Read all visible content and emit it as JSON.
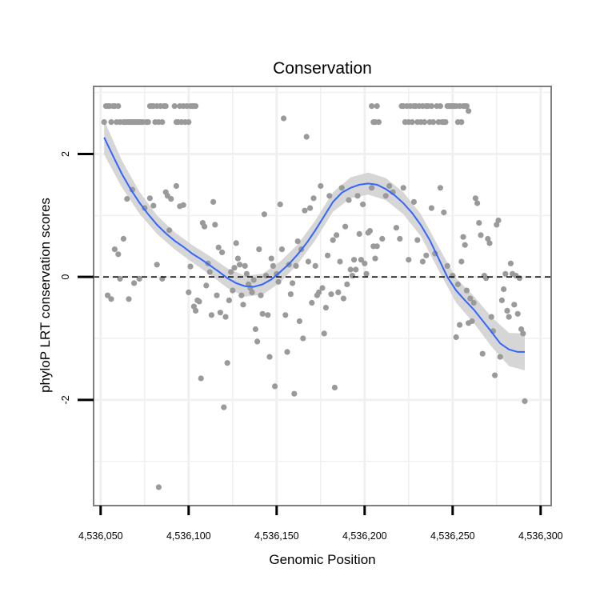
{
  "chart_data": {
    "type": "scatter",
    "title": "Conservation",
    "xlabel": "Genomic Position",
    "ylabel": "phyloP LRT conservation scores",
    "xlim": [
      4536046,
      4536306
    ],
    "ylim": [
      -3.72,
      3.1
    ],
    "x_ticks": [
      {
        "value": 4536050,
        "label": "4,536,050"
      },
      {
        "value": 4536100,
        "label": "4,536,100"
      },
      {
        "value": 4536150,
        "label": "4,536,150"
      },
      {
        "value": 4536200,
        "label": "4,536,200"
      },
      {
        "value": 4536250,
        "label": "4,536,250"
      },
      {
        "value": 4536300,
        "label": "4,536,300"
      }
    ],
    "y_ticks": [
      {
        "value": -2,
        "label": "-2"
      },
      {
        "value": 0,
        "label": "0"
      },
      {
        "value": 2,
        "label": "2"
      }
    ],
    "reference_line": {
      "y": 0,
      "style": "dashed",
      "color": "#000000"
    },
    "points_color": "#9a9a9a",
    "smooth_color": "#3366ff",
    "ribbon_color": "#d4d4d4",
    "panel_border_color": "#7f7f7f",
    "grid_color": "#f0f0f0",
    "points": [
      [
        4536052,
        2.52
      ],
      [
        4536053,
        2.78
      ],
      [
        4536054,
        2.78
      ],
      [
        4536055,
        2.78
      ],
      [
        4536056,
        2.52
      ],
      [
        4536057,
        2.78
      ],
      [
        4536058,
        2.78
      ],
      [
        4536059,
        2.52
      ],
      [
        4536060,
        2.78
      ],
      [
        4536061,
        2.52
      ],
      [
        4536063,
        2.52
      ],
      [
        4536064,
        2.52
      ],
      [
        4536065,
        2.52
      ],
      [
        4536066,
        2.52
      ],
      [
        4536067,
        2.52
      ],
      [
        4536068,
        2.52
      ],
      [
        4536069,
        2.52
      ],
      [
        4536070,
        2.52
      ],
      [
        4536071,
        2.52
      ],
      [
        4536072,
        2.52
      ],
      [
        4536073,
        2.52
      ],
      [
        4536074,
        2.52
      ],
      [
        4536076,
        2.52
      ],
      [
        4536077,
        2.52
      ],
      [
        4536078,
        2.78
      ],
      [
        4536079,
        2.78
      ],
      [
        4536080,
        2.78
      ],
      [
        4536081,
        2.52
      ],
      [
        4536082,
        2.78
      ],
      [
        4536083,
        2.52
      ],
      [
        4536084,
        2.78
      ],
      [
        4536085,
        2.52
      ],
      [
        4536086,
        2.78
      ],
      [
        4536087,
        2.78
      ],
      [
        4536092,
        2.78
      ],
      [
        4536093,
        2.52
      ],
      [
        4536094,
        2.52
      ],
      [
        4536095,
        2.78
      ],
      [
        4536096,
        2.52
      ],
      [
        4536097,
        2.78
      ],
      [
        4536098,
        2.52
      ],
      [
        4536099,
        2.78
      ],
      [
        4536100,
        2.52
      ],
      [
        4536101,
        2.78
      ],
      [
        4536102,
        2.78
      ],
      [
        4536103,
        2.78
      ],
      [
        4536104,
        2.78
      ],
      [
        4536204,
        2.78
      ],
      [
        4536205,
        2.52
      ],
      [
        4536206,
        2.52
      ],
      [
        4536207,
        2.78
      ],
      [
        4536208,
        2.52
      ],
      [
        4536221,
        2.78
      ],
      [
        4536222,
        2.78
      ],
      [
        4536223,
        2.52
      ],
      [
        4536224,
        2.78
      ],
      [
        4536225,
        2.52
      ],
      [
        4536226,
        2.78
      ],
      [
        4536227,
        2.52
      ],
      [
        4536228,
        2.78
      ],
      [
        4536229,
        2.78
      ],
      [
        4536230,
        2.52
      ],
      [
        4536231,
        2.78
      ],
      [
        4536232,
        2.52
      ],
      [
        4536233,
        2.78
      ],
      [
        4536234,
        2.52
      ],
      [
        4536235,
        2.78
      ],
      [
        4536236,
        2.78
      ],
      [
        4536237,
        2.52
      ],
      [
        4536238,
        2.78
      ],
      [
        4536239,
        2.52
      ],
      [
        4536241,
        2.78
      ],
      [
        4536242,
        2.52
      ],
      [
        4536243,
        2.78
      ],
      [
        4536244,
        2.52
      ],
      [
        4536245,
        2.52
      ],
      [
        4536246,
        2.52
      ],
      [
        4536247,
        2.78
      ],
      [
        4536248,
        2.78
      ],
      [
        4536249,
        2.78
      ],
      [
        4536250,
        2.78
      ],
      [
        4536251,
        2.78
      ],
      [
        4536252,
        2.78
      ],
      [
        4536253,
        2.52
      ],
      [
        4536254,
        2.78
      ],
      [
        4536255,
        2.52
      ],
      [
        4536256,
        2.78
      ],
      [
        4536257,
        2.78
      ],
      [
        4536258,
        2.78
      ],
      [
        4536259,
        2.7
      ],
      [
        4536054,
        -0.3
      ],
      [
        4536056,
        -0.36
      ],
      [
        4536058,
        0.45
      ],
      [
        4536060,
        0.37
      ],
      [
        4536061,
        -0.03
      ],
      [
        4536063,
        0.62
      ],
      [
        4536065,
        1.27
      ],
      [
        4536066,
        -0.36
      ],
      [
        4536068,
        1.42
      ],
      [
        4536069,
        -0.1
      ],
      [
        4536072,
        -0.03
      ],
      [
        4536075,
        1.12
      ],
      [
        4536078,
        1.28
      ],
      [
        4536080,
        1.16
      ],
      [
        4536082,
        0.2
      ],
      [
        4536083,
        -3.42
      ],
      [
        4536085,
        -0.03
      ],
      [
        4536087,
        1.38
      ],
      [
        4536088,
        1.32
      ],
      [
        4536089,
        0.76
      ],
      [
        4536090,
        1.27
      ],
      [
        4536093,
        1.48
      ],
      [
        4536095,
        1.15
      ],
      [
        4536097,
        1.17
      ],
      [
        4536100,
        -0.25
      ],
      [
        4536101,
        0.17
      ],
      [
        4536103,
        -0.48
      ],
      [
        4536104,
        -0.55
      ],
      [
        4536105,
        -0.38
      ],
      [
        4536106,
        -0.4
      ],
      [
        4536107,
        -1.65
      ],
      [
        4536108,
        0.88
      ],
      [
        4536109,
        0.82
      ],
      [
        4536110,
        -0.14
      ],
      [
        4536111,
        0.22
      ],
      [
        4536112,
        0.08
      ],
      [
        4536113,
        -0.62
      ],
      [
        4536114,
        1.22
      ],
      [
        4536115,
        0.85
      ],
      [
        4536116,
        -0.3
      ],
      [
        4536117,
        0.48
      ],
      [
        4536118,
        -0.58
      ],
      [
        4536119,
        0.4
      ],
      [
        4536120,
        -2.12
      ],
      [
        4536121,
        -0.65
      ],
      [
        4536122,
        -1.4
      ],
      [
        4536123,
        -0.38
      ],
      [
        4536124,
        0.08
      ],
      [
        4536125,
        -0.22
      ],
      [
        4536126,
        0.15
      ],
      [
        4536127,
        0.55
      ],
      [
        4536128,
        0.3
      ],
      [
        4536129,
        0.2
      ],
      [
        4536130,
        -0.3
      ],
      [
        4536131,
        -0.45
      ],
      [
        4536132,
        0.18
      ],
      [
        4536133,
        0.05
      ],
      [
        4536134,
        -0.12
      ],
      [
        4536135,
        -0.18
      ],
      [
        4536136,
        -0.25
      ],
      [
        4536137,
        -0.05
      ],
      [
        4536138,
        -0.85
      ],
      [
        4536139,
        -1.05
      ],
      [
        4536140,
        0.45
      ],
      [
        4536141,
        -0.3
      ],
      [
        4536142,
        -0.6
      ],
      [
        4536143,
        1.02
      ],
      [
        4536144,
        0.02
      ],
      [
        4536145,
        -0.62
      ],
      [
        4536146,
        -1.3
      ],
      [
        4536147,
        0.3
      ],
      [
        4536148,
        0.18
      ],
      [
        4536149,
        -1.78
      ],
      [
        4536150,
        0.05
      ],
      [
        4536151,
        -0.08
      ],
      [
        4536152,
        1.18
      ],
      [
        4536153,
        0.45
      ],
      [
        4536154,
        2.58
      ],
      [
        4536155,
        -0.62
      ],
      [
        4536156,
        -1.22
      ],
      [
        4536157,
        0.2
      ],
      [
        4536158,
        -0.28
      ],
      [
        4536159,
        -0.1
      ],
      [
        4536160,
        -1.9
      ],
      [
        4536161,
        0.18
      ],
      [
        4536162,
        0.58
      ],
      [
        4536163,
        -0.72
      ],
      [
        4536164,
        0.45
      ],
      [
        4536165,
        -1.0
      ],
      [
        4536166,
        1.08
      ],
      [
        4536167,
        2.28
      ],
      [
        4536168,
        0.25
      ],
      [
        4536169,
        1.12
      ],
      [
        4536170,
        -0.42
      ],
      [
        4536171,
        1.28
      ],
      [
        4536172,
        0.18
      ],
      [
        4536173,
        -0.3
      ],
      [
        4536174,
        -0.25
      ],
      [
        4536175,
        1.48
      ],
      [
        4536176,
        -0.18
      ],
      [
        4536177,
        -0.92
      ],
      [
        4536178,
        -0.5
      ],
      [
        4536179,
        0.35
      ],
      [
        4536180,
        1.32
      ],
      [
        4536181,
        -0.28
      ],
      [
        4536182,
        0.6
      ],
      [
        4536183,
        -1.8
      ],
      [
        4536184,
        0.68
      ],
      [
        4536185,
        -0.25
      ],
      [
        4536186,
        0.25
      ],
      [
        4536187,
        1.45
      ],
      [
        4536188,
        -0.35
      ],
      [
        4536189,
        0.82
      ],
      [
        4536190,
        -0.12
      ],
      [
        4536191,
        1.25
      ],
      [
        4536192,
        0.12
      ],
      [
        4536193,
        0.02
      ],
      [
        4536194,
        0.28
      ],
      [
        4536195,
        0.12
      ],
      [
        4536196,
        1.32
      ],
      [
        4536197,
        0.7
      ],
      [
        4536198,
        0.28
      ],
      [
        4536199,
        1.18
      ],
      [
        4536200,
        0.22
      ],
      [
        4536201,
        0.05
      ],
      [
        4536202,
        0.72
      ],
      [
        4536203,
        0.75
      ],
      [
        4536204,
        1.45
      ],
      [
        4536205,
        0.5
      ],
      [
        4536206,
        0.3
      ],
      [
        4536207,
        0.5
      ],
      [
        4536210,
        0.62
      ],
      [
        4536212,
        1.32
      ],
      [
        4536214,
        1.48
      ],
      [
        4536216,
        1.38
      ],
      [
        4536218,
        0.8
      ],
      [
        4536220,
        0.62
      ],
      [
        4536222,
        1.45
      ],
      [
        4536225,
        0.28
      ],
      [
        4536228,
        1.22
      ],
      [
        4536230,
        0.6
      ],
      [
        4536233,
        0.25
      ],
      [
        4536235,
        0.35
      ],
      [
        4536238,
        1.12
      ],
      [
        4536240,
        0.38
      ],
      [
        4536243,
        1.45
      ],
      [
        4536245,
        1.05
      ],
      [
        4536247,
        0.18
      ],
      [
        4536250,
        0.02
      ],
      [
        4536252,
        -0.98
      ],
      [
        4536253,
        -0.12
      ],
      [
        4536254,
        -0.78
      ],
      [
        4536255,
        0.25
      ],
      [
        4536256,
        0.65
      ],
      [
        4536257,
        0.52
      ],
      [
        4536258,
        -0.22
      ],
      [
        4536259,
        -0.75
      ],
      [
        4536260,
        -0.35
      ],
      [
        4536261,
        -0.72
      ],
      [
        4536262,
        -0.42
      ],
      [
        4536263,
        1.28
      ],
      [
        4536264,
        1.2
      ],
      [
        4536265,
        0.88
      ],
      [
        4536266,
        0.68
      ],
      [
        4536267,
        -1.25
      ],
      [
        4536268,
        0.02
      ],
      [
        4536269,
        -0.02
      ],
      [
        4536270,
        0.62
      ],
      [
        4536271,
        0.55
      ],
      [
        4536272,
        -0.65
      ],
      [
        4536273,
        -0.88
      ],
      [
        4536274,
        -1.6
      ],
      [
        4536275,
        0.85
      ],
      [
        4536276,
        0.92
      ],
      [
        4536277,
        -1.3
      ],
      [
        4536278,
        -0.38
      ],
      [
        4536279,
        -0.2
      ],
      [
        4536280,
        0.05
      ],
      [
        4536281,
        -0.55
      ],
      [
        4536282,
        -0.65
      ],
      [
        4536283,
        0.22
      ],
      [
        4536284,
        0.05
      ],
      [
        4536285,
        -0.45
      ],
      [
        4536286,
        0.02
      ],
      [
        4536287,
        -0.6
      ],
      [
        4536288,
        -0.02
      ],
      [
        4536289,
        -0.85
      ],
      [
        4536290,
        -0.92
      ],
      [
        4536291,
        -2.02
      ]
    ],
    "smooth_line": [
      [
        4536052,
        2.27
      ],
      [
        4536057,
        1.97
      ],
      [
        4536062,
        1.68
      ],
      [
        4536067,
        1.43
      ],
      [
        4536072,
        1.21
      ],
      [
        4536077,
        1.02
      ],
      [
        4536082,
        0.85
      ],
      [
        4536087,
        0.71
      ],
      [
        4536092,
        0.59
      ],
      [
        4536097,
        0.49
      ],
      [
        4536102,
        0.38
      ],
      [
        4536107,
        0.29
      ],
      [
        4536112,
        0.19
      ],
      [
        4536117,
        0.09
      ],
      [
        4536122,
        -0.02
      ],
      [
        4536127,
        -0.1
      ],
      [
        4536132,
        -0.15
      ],
      [
        4536137,
        -0.16
      ],
      [
        4536142,
        -0.12
      ],
      [
        4536147,
        -0.04
      ],
      [
        4536152,
        0.08
      ],
      [
        4536157,
        0.21
      ],
      [
        4536162,
        0.37
      ],
      [
        4536167,
        0.55
      ],
      [
        4536172,
        0.76
      ],
      [
        4536177,
        0.99
      ],
      [
        4536182,
        1.22
      ],
      [
        4536187,
        1.37
      ],
      [
        4536192,
        1.45
      ],
      [
        4536197,
        1.5
      ],
      [
        4536202,
        1.52
      ],
      [
        4536207,
        1.5
      ],
      [
        4536212,
        1.43
      ],
      [
        4536217,
        1.33
      ],
      [
        4536222,
        1.2
      ],
      [
        4536227,
        1.04
      ],
      [
        4536232,
        0.84
      ],
      [
        4536237,
        0.6
      ],
      [
        4536242,
        0.3
      ],
      [
        4536247,
        0.0
      ],
      [
        4536252,
        -0.22
      ],
      [
        4536257,
        -0.38
      ],
      [
        4536262,
        -0.53
      ],
      [
        4536267,
        -0.71
      ],
      [
        4536272,
        -0.89
      ],
      [
        4536277,
        -1.08
      ],
      [
        4536282,
        -1.18
      ],
      [
        4536287,
        -1.22
      ],
      [
        4536291,
        -1.22
      ]
    ],
    "smooth_band": [
      [
        4536052,
        2.27,
        0.28
      ],
      [
        4536062,
        1.68,
        0.22
      ],
      [
        4536072,
        1.21,
        0.18
      ],
      [
        4536082,
        0.85,
        0.15
      ],
      [
        4536092,
        0.59,
        0.14
      ],
      [
        4536102,
        0.38,
        0.14
      ],
      [
        4536112,
        0.19,
        0.15
      ],
      [
        4536122,
        -0.02,
        0.16
      ],
      [
        4536132,
        -0.15,
        0.17
      ],
      [
        4536142,
        -0.12,
        0.17
      ],
      [
        4536152,
        0.08,
        0.17
      ],
      [
        4536162,
        0.37,
        0.16
      ],
      [
        4536172,
        0.76,
        0.16
      ],
      [
        4536182,
        1.22,
        0.16
      ],
      [
        4536192,
        1.45,
        0.17
      ],
      [
        4536202,
        1.52,
        0.18
      ],
      [
        4536212,
        1.43,
        0.18
      ],
      [
        4536222,
        1.2,
        0.18
      ],
      [
        4536232,
        0.84,
        0.18
      ],
      [
        4536242,
        0.3,
        0.19
      ],
      [
        4536252,
        -0.22,
        0.2
      ],
      [
        4536262,
        -0.53,
        0.22
      ],
      [
        4536272,
        -0.89,
        0.24
      ],
      [
        4536282,
        -1.18,
        0.27
      ],
      [
        4536291,
        -1.22,
        0.3
      ]
    ]
  }
}
